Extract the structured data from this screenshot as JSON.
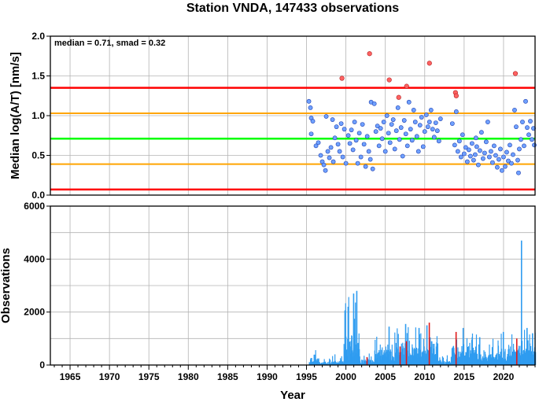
{
  "title": "Station VNDA, 147433 observations",
  "annotation": "median = 0.71, smad = 0.32",
  "colors": {
    "outer_red": "#ff0000",
    "inner_orange": "#ffa500",
    "median_green": "#00ff00",
    "point_blue": "#6fa1ff",
    "point_red": "#ff6262",
    "bar_blue": "#2f9cf0",
    "bar_red": "#e01818",
    "grid": "#b4b4b4"
  },
  "chart_data": [
    {
      "type": "scatter",
      "ylabel": "Median log(A/T) [nm/s]",
      "xlim": [
        1962.5,
        2024
      ],
      "ylim": [
        0,
        2
      ],
      "yticks": [
        "0.0",
        "0.5",
        "1.0",
        "1.5",
        "2.0"
      ],
      "grid": true,
      "reference_lines": [
        {
          "y": 0.07,
          "color": "red"
        },
        {
          "y": 0.39,
          "color": "orange"
        },
        {
          "y": 0.71,
          "color": "green"
        },
        {
          "y": 1.03,
          "color": "orange"
        },
        {
          "y": 1.35,
          "color": "red"
        }
      ],
      "outliers": [
        {
          "x": 1999.5,
          "y": 1.47
        },
        {
          "x": 2003.0,
          "y": 1.78
        },
        {
          "x": 2005.5,
          "y": 1.45
        },
        {
          "x": 2006.7,
          "y": 1.23
        },
        {
          "x": 2007.7,
          "y": 1.37
        },
        {
          "x": 2010.6,
          "y": 1.66
        },
        {
          "x": 2013.9,
          "y": 1.29
        },
        {
          "x": 2014.0,
          "y": 1.25
        },
        {
          "x": 2021.5,
          "y": 1.53
        }
      ],
      "points": [
        [
          1995.3,
          1.18
        ],
        [
          1995.5,
          1.1
        ],
        [
          1995.6,
          0.97
        ],
        [
          1995.8,
          0.93
        ],
        [
          1995.6,
          0.77
        ],
        [
          1996.2,
          0.62
        ],
        [
          1996.5,
          0.66
        ],
        [
          1996.8,
          0.5
        ],
        [
          1997.0,
          0.42
        ],
        [
          1997.2,
          0.38
        ],
        [
          1997.4,
          0.31
        ],
        [
          1997.5,
          0.99
        ],
        [
          1997.7,
          0.55
        ],
        [
          1997.9,
          0.47
        ],
        [
          1998.1,
          0.6
        ],
        [
          1998.3,
          0.95
        ],
        [
          1998.4,
          0.42
        ],
        [
          1998.6,
          0.72
        ],
        [
          1998.8,
          0.86
        ],
        [
          1999.0,
          0.64
        ],
        [
          1999.2,
          0.55
        ],
        [
          1999.4,
          0.9
        ],
        [
          1999.6,
          0.48
        ],
        [
          1999.8,
          0.83
        ],
        [
          2000.0,
          0.4
        ],
        [
          2000.3,
          0.75
        ],
        [
          2000.5,
          0.65
        ],
        [
          2000.7,
          0.82
        ],
        [
          2000.9,
          0.57
        ],
        [
          2001.1,
          0.92
        ],
        [
          2001.3,
          0.69
        ],
        [
          2001.5,
          0.4
        ],
        [
          2001.7,
          0.78
        ],
        [
          2001.9,
          0.48
        ],
        [
          2002.1,
          0.89
        ],
        [
          2002.3,
          0.64
        ],
        [
          2002.5,
          0.36
        ],
        [
          2002.7,
          0.74
        ],
        [
          2002.9,
          0.55
        ],
        [
          2003.1,
          0.45
        ],
        [
          2003.2,
          1.17
        ],
        [
          2003.4,
          0.33
        ],
        [
          2003.6,
          1.15
        ],
        [
          2003.8,
          0.8
        ],
        [
          2004.0,
          0.87
        ],
        [
          2004.2,
          0.62
        ],
        [
          2004.4,
          0.84
        ],
        [
          2004.6,
          0.71
        ],
        [
          2004.8,
          0.92
        ],
        [
          2005.0,
          0.55
        ],
        [
          2005.2,
          1.0
        ],
        [
          2005.4,
          0.78
        ],
        [
          2005.6,
          0.66
        ],
        [
          2005.8,
          0.89
        ],
        [
          2006.0,
          0.95
        ],
        [
          2006.2,
          0.58
        ],
        [
          2006.4,
          0.81
        ],
        [
          2006.6,
          1.1
        ],
        [
          2006.8,
          0.7
        ],
        [
          2007.0,
          0.85
        ],
        [
          2007.2,
          0.49
        ],
        [
          2007.4,
          0.94
        ],
        [
          2007.6,
          0.77
        ],
        [
          2007.8,
          0.62
        ],
        [
          2008.0,
          1.17
        ],
        [
          2008.2,
          0.83
        ],
        [
          2008.4,
          0.69
        ],
        [
          2008.6,
          1.07
        ],
        [
          2008.8,
          0.92
        ],
        [
          2009.0,
          0.74
        ],
        [
          2009.2,
          0.55
        ],
        [
          2009.4,
          0.88
        ],
        [
          2009.6,
          0.98
        ],
        [
          2009.8,
          0.61
        ],
        [
          2010.0,
          0.8
        ],
        [
          2010.2,
          1.01
        ],
        [
          2010.4,
          0.86
        ],
        [
          2010.6,
          0.92
        ],
        [
          2010.8,
          1.07
        ],
        [
          2011.0,
          0.83
        ],
        [
          2011.2,
          0.73
        ],
        [
          2011.4,
          0.91
        ],
        [
          2011.6,
          0.81
        ],
        [
          2011.8,
          0.68
        ],
        [
          2013.5,
          0.9
        ],
        [
          2013.8,
          0.63
        ],
        [
          2014.0,
          1.05
        ],
        [
          2014.2,
          0.55
        ],
        [
          2014.4,
          0.68
        ],
        [
          2014.6,
          0.48
        ],
        [
          2014.8,
          0.76
        ],
        [
          2015.0,
          0.52
        ],
        [
          2015.2,
          0.6
        ],
        [
          2015.4,
          0.42
        ],
        [
          2015.6,
          0.57
        ],
        [
          2015.8,
          0.49
        ],
        [
          2016.0,
          0.65
        ],
        [
          2016.2,
          0.44
        ],
        [
          2016.4,
          0.51
        ],
        [
          2016.6,
          0.61
        ],
        [
          2016.8,
          0.38
        ],
        [
          2017.0,
          0.56
        ],
        [
          2017.2,
          0.79
        ],
        [
          2017.4,
          0.46
        ],
        [
          2017.6,
          0.53
        ],
        [
          2017.8,
          0.67
        ],
        [
          2018.0,
          0.92
        ],
        [
          2018.2,
          0.48
        ],
        [
          2018.4,
          0.55
        ],
        [
          2018.6,
          0.41
        ],
        [
          2018.8,
          0.62
        ],
        [
          2019.0,
          0.5
        ],
        [
          2019.2,
          0.35
        ],
        [
          2019.4,
          0.45
        ],
        [
          2019.6,
          0.58
        ],
        [
          2019.8,
          0.31
        ],
        [
          2020.0,
          0.48
        ],
        [
          2020.2,
          0.36
        ],
        [
          2020.4,
          0.54
        ],
        [
          2020.6,
          0.43
        ],
        [
          2020.8,
          0.63
        ],
        [
          2021.0,
          0.4
        ],
        [
          2021.2,
          0.51
        ],
        [
          2021.4,
          1.07
        ],
        [
          2021.6,
          0.86
        ],
        [
          2021.8,
          0.44
        ],
        [
          2022.0,
          0.58
        ],
        [
          2022.2,
          0.7
        ],
        [
          2022.4,
          0.92
        ],
        [
          2022.6,
          0.62
        ],
        [
          2022.8,
          1.18
        ],
        [
          2023.0,
          0.85
        ],
        [
          2023.2,
          0.76
        ],
        [
          2023.4,
          0.93
        ],
        [
          2023.6,
          0.7
        ],
        [
          2023.8,
          0.84
        ],
        [
          2023.9,
          0.63
        ],
        [
          2021.9,
          0.28
        ],
        [
          2016.5,
          0.72
        ],
        [
          2012.0,
          0.96
        ]
      ]
    },
    {
      "type": "bar",
      "xlabel": "Year",
      "ylabel": "Observations",
      "xlim": [
        1962.5,
        2024
      ],
      "ylim": [
        0,
        6000
      ],
      "yticks": [
        "0",
        "2000",
        "4000",
        "6000"
      ],
      "xticks": [
        "1965",
        "1970",
        "1975",
        "1980",
        "1985",
        "1990",
        "1995",
        "2000",
        "2005",
        "2010",
        "2015",
        "2020"
      ],
      "grid": true,
      "red_bars": [
        {
          "x": 2002.6,
          "v": 300
        },
        {
          "x": 2006.8,
          "v": 700
        },
        {
          "x": 2007.6,
          "v": 900
        },
        {
          "x": 2010.5,
          "v": 1600
        },
        {
          "x": 2013.9,
          "v": 1250
        },
        {
          "x": 2021.6,
          "v": 1000
        }
      ],
      "segments": [
        {
          "from": 1995.3,
          "to": 1996.5,
          "base": 250,
          "amp": 300
        },
        {
          "from": 1996.5,
          "to": 1998.2,
          "base": 120,
          "amp": 150
        },
        {
          "from": 1998.2,
          "to": 1999.7,
          "base": 150,
          "amp": 250
        },
        {
          "from": 1999.7,
          "to": 2001.7,
          "base": 1100,
          "amp": 1700
        },
        {
          "from": 2001.7,
          "to": 2003.6,
          "base": 200,
          "amp": 250
        },
        {
          "from": 2003.6,
          "to": 2005.0,
          "base": 550,
          "amp": 450
        },
        {
          "from": 2005.0,
          "to": 2007.2,
          "base": 750,
          "amp": 650
        },
        {
          "from": 2007.2,
          "to": 2009.8,
          "base": 650,
          "amp": 700
        },
        {
          "from": 2009.8,
          "to": 2011.6,
          "base": 800,
          "amp": 550
        },
        {
          "from": 2011.6,
          "to": 2013.4,
          "base": 150,
          "amp": 220
        },
        {
          "from": 2013.4,
          "to": 2016.5,
          "base": 650,
          "amp": 600
        },
        {
          "from": 2016.5,
          "to": 2019.5,
          "base": 400,
          "amp": 500
        },
        {
          "from": 2019.5,
          "to": 2021.8,
          "base": 550,
          "amp": 550
        },
        {
          "from": 2021.8,
          "to": 2024.0,
          "base": 650,
          "amp": 600
        }
      ],
      "spikes": [
        {
          "x": 2001.3,
          "v": 2800
        },
        {
          "x": 2000.9,
          "v": 2700
        },
        {
          "x": 2000.2,
          "v": 2200
        },
        {
          "x": 2005.4,
          "v": 1450
        },
        {
          "x": 2007.5,
          "v": 1550
        },
        {
          "x": 2009.2,
          "v": 1400
        },
        {
          "x": 2010.2,
          "v": 1500
        },
        {
          "x": 2014.8,
          "v": 1400
        },
        {
          "x": 2016.9,
          "v": 1050
        },
        {
          "x": 2019.9,
          "v": 1250
        },
        {
          "x": 2022.2,
          "v": 4700
        },
        {
          "x": 2022.9,
          "v": 1400
        },
        {
          "x": 2023.6,
          "v": 1200
        }
      ]
    }
  ]
}
